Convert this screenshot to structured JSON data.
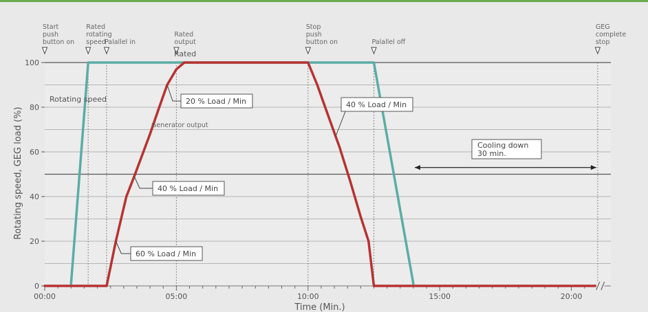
{
  "chart_data": {
    "type": "line",
    "xlabel": "Time (Min.)",
    "ylabel": "Rotating speed, GEG load (%)",
    "xlim": [
      0,
      21.5
    ],
    "ylim": [
      0,
      100
    ],
    "x_ticks": [
      0,
      5,
      10,
      15,
      20
    ],
    "x_tick_labels": [
      "00:00",
      "05:00",
      "10:00",
      "15:00",
      "20:00"
    ],
    "y_ticks": [
      0,
      20,
      40,
      60,
      80,
      100
    ],
    "y_tick_labels": [
      "0",
      "20",
      "40",
      "60",
      "80",
      "100"
    ],
    "grid": true,
    "series": [
      {
        "name": "Rotating speed",
        "color": "#5aada5",
        "points": [
          [
            1.0,
            1
          ],
          [
            1.65,
            100
          ],
          [
            12.5,
            100
          ],
          [
            14.0,
            1
          ]
        ]
      },
      {
        "name": "Generator output",
        "color": "#b83232",
        "points": [
          [
            0.0,
            0
          ],
          [
            2.35,
            0
          ],
          [
            2.7,
            20
          ],
          [
            3.1,
            40
          ],
          [
            3.4,
            49
          ],
          [
            4.0,
            68
          ],
          [
            4.35,
            80
          ],
          [
            4.65,
            90
          ],
          [
            5.0,
            97
          ],
          [
            5.3,
            100
          ],
          [
            10.0,
            100
          ],
          [
            10.35,
            90
          ],
          [
            10.65,
            80
          ],
          [
            11.2,
            62
          ],
          [
            11.6,
            47
          ],
          [
            12.0,
            31
          ],
          [
            12.3,
            20
          ],
          [
            12.5,
            0
          ],
          [
            21.1,
            0
          ]
        ]
      }
    ],
    "milestones": [
      {
        "x": 0.0,
        "lines": [
          "Start",
          "push",
          "button on"
        ]
      },
      {
        "x": 1.65,
        "lines": [
          "Rated",
          "rotating",
          "speed"
        ]
      },
      {
        "x": 2.35,
        "lines": [
          "Palallel in"
        ]
      },
      {
        "x": 5.0,
        "lines": [
          "Rated",
          "output"
        ]
      },
      {
        "x": 10.0,
        "lines": [
          "Stop",
          "push",
          "button on"
        ]
      },
      {
        "x": 12.5,
        "lines": [
          "Palallel off"
        ]
      },
      {
        "x": 21.0,
        "lines": [
          "GEG",
          "complete",
          "stop"
        ]
      }
    ],
    "labels": {
      "rated": "Rated",
      "rotating_speed": "Rotating speed",
      "generator_output": "Generator output"
    },
    "callouts": [
      {
        "text": "20 % Load / Min"
      },
      {
        "text": "40 % Load / Min"
      },
      {
        "text": "60 % Load / Min"
      },
      {
        "text": "40 % Load / Min"
      }
    ],
    "cooling": {
      "line1": "Cooling down",
      "line2": "30 min."
    }
  }
}
